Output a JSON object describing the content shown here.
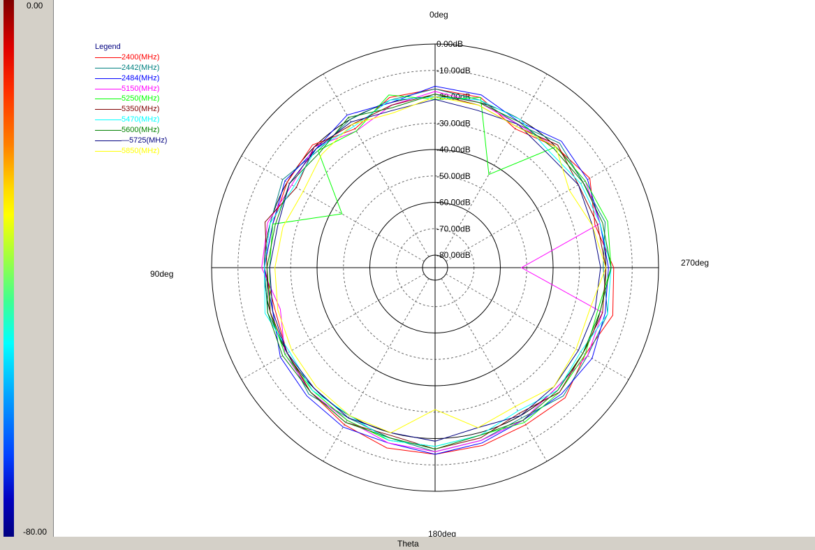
{
  "colorbar": {
    "max_label": "0.00",
    "min_label": "-80.00",
    "unit": "dB"
  },
  "axis_title": "Theta",
  "chart_data": {
    "type": "polar-line",
    "angle_labels": {
      "top": "0deg",
      "left": "90deg",
      "bottom": "180deg",
      "right": "270deg"
    },
    "radial_labels": [
      "0.00dB",
      "-10.00dB",
      "-20.00dB",
      "-30.00dB",
      "-40.00dB",
      "-50.00dB",
      "-60.00dB",
      "-70.00dB",
      "-80.00dB"
    ],
    "rlim": [
      -80,
      0
    ],
    "angle_direction": "counterclockwise",
    "zero_angle": "top",
    "legend_title": "Legend",
    "legend_position": "top-left",
    "theta_deg": [
      0,
      15,
      30,
      45,
      60,
      75,
      90,
      105,
      120,
      135,
      150,
      165,
      180,
      195,
      210,
      225,
      240,
      255,
      270,
      285,
      300,
      315,
      330,
      345
    ],
    "series": [
      {
        "name": "2400(MHz)",
        "color": "#ff0000",
        "values": [
          -17,
          -18,
          -24,
          -19,
          -20,
          -21,
          -20,
          -22,
          -20,
          -18,
          -16,
          -14,
          -14,
          -15,
          -16,
          -15,
          -19,
          -15,
          -17,
          -22,
          -17,
          -20,
          -24,
          -18
        ]
      },
      {
        "name": "2442(MHz)",
        "color": "#008080",
        "values": [
          -17,
          -19,
          -20,
          -22,
          -18,
          -20,
          -20,
          -19,
          -20,
          -17,
          -19,
          -18,
          -15,
          -17,
          -19,
          -16,
          -18,
          -17,
          -21,
          -18,
          -20,
          -18,
          -22,
          -19
        ]
      },
      {
        "name": "2484(MHz)",
        "color": "#0000ff",
        "values": [
          -16,
          -20,
          -18,
          -21,
          -19,
          -21,
          -20,
          -21,
          -17,
          -16,
          -15,
          -16,
          -14,
          -16,
          -18,
          -17,
          -16,
          -18,
          -19,
          -20,
          -18,
          -17,
          -21,
          -17
        ]
      },
      {
        "name": "5150(MHz)",
        "color": "#ff00ff",
        "values": [
          -18,
          -21,
          -25,
          -20,
          -22,
          -19,
          -19,
          -24,
          -19,
          -18,
          -18,
          -16,
          -15,
          -17,
          -18,
          -20,
          -18,
          -19,
          -52,
          -20,
          -19,
          -20,
          -22,
          -20
        ]
      },
      {
        "name": "5250(MHz)",
        "color": "#00ff00",
        "values": [
          -21,
          -17,
          -25,
          -22,
          -44,
          -21,
          -22,
          -20,
          -19,
          -19,
          -18,
          -17,
          -17,
          -19,
          -17,
          -18,
          -19,
          -21,
          -18,
          -17,
          -19,
          -20,
          -44,
          -18
        ]
      },
      {
        "name": "5350(MHz)",
        "color": "#800000",
        "values": [
          -19,
          -21,
          -22,
          -20,
          -24,
          -18,
          -21,
          -20,
          -20,
          -18,
          -17,
          -19,
          -16,
          -18,
          -21,
          -18,
          -20,
          -19,
          -20,
          -21,
          -22,
          -19,
          -23,
          -21
        ]
      },
      {
        "name": "5470(MHz)",
        "color": "#00ffff",
        "values": [
          -20,
          -19,
          -23,
          -21,
          -23,
          -20,
          -20,
          -18,
          -21,
          -19,
          -20,
          -17,
          -17,
          -19,
          -22,
          -19,
          -21,
          -17,
          -18,
          -20,
          -21,
          -23,
          -20,
          -19
        ]
      },
      {
        "name": "5600(MHz)",
        "color": "#008000",
        "values": [
          -19,
          -22,
          -19,
          -23,
          -21,
          -22,
          -21,
          -19,
          -18,
          -18,
          -17,
          -18,
          -16,
          -19,
          -18,
          -19,
          -20,
          -20,
          -18,
          -19,
          -20,
          -21,
          -21,
          -20
        ]
      },
      {
        "name": "—5725(MHz)",
        "color": "#000080",
        "values": [
          -21,
          -23,
          -21,
          -21,
          -21,
          -23,
          -22,
          -21,
          -20,
          -20,
          -19,
          -20,
          -19,
          -22,
          -20,
          -21,
          -22,
          -22,
          -22,
          -23,
          -22,
          -24,
          -22,
          -23
        ]
      },
      {
        "name": "5850(MHz)",
        "color": "#ffff00",
        "values": [
          -20,
          -24,
          -22,
          -24,
          -27,
          -25,
          -24,
          -23,
          -22,
          -21,
          -20,
          -20,
          -31,
          -22,
          -24,
          -21,
          -23,
          -24,
          -20,
          -23,
          -26,
          -20,
          -23,
          -21
        ]
      }
    ]
  }
}
